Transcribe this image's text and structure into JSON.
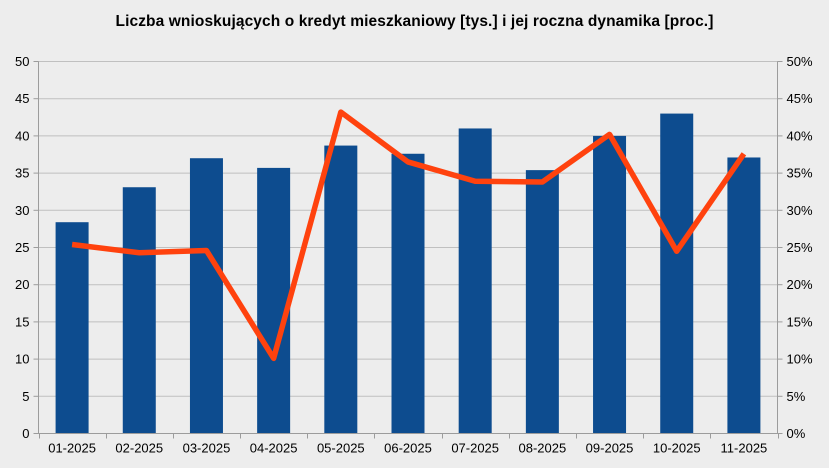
{
  "chart_data": {
    "type": "bar",
    "title": "Liczba wnioskujących o kredyt mieszkaniowy [tys.] i jej roczna dynamika [proc.]",
    "categories": [
      "01-2025",
      "02-2025",
      "03-2025",
      "04-2025",
      "05-2025",
      "06-2025",
      "07-2025",
      "08-2025",
      "09-2025",
      "10-2025",
      "11-2025"
    ],
    "series": [
      {
        "name": "Liczba wnioskujących o kredyt mieszkaniowy [tys.]",
        "kind": "bar",
        "axis": "left",
        "values": [
          28.4,
          33.1,
          37.0,
          35.7,
          38.7,
          37.6,
          41.0,
          35.4,
          40.0,
          43.0,
          37.1
        ]
      },
      {
        "name": "roczna dynamika [proc.]",
        "kind": "line",
        "axis": "right",
        "values": [
          25.4,
          24.3,
          24.6,
          10.1,
          43.2,
          36.5,
          33.9,
          33.8,
          40.2,
          24.5,
          37.6
        ]
      }
    ],
    "left_axis": {
      "min": 0,
      "max": 50,
      "step": 5,
      "tick_labels": [
        "0",
        "5",
        "10",
        "15",
        "20",
        "25",
        "30",
        "35",
        "40",
        "45",
        "50"
      ]
    },
    "right_axis": {
      "min": 0,
      "max": 50,
      "step": 5,
      "tick_labels": [
        "0%",
        "5%",
        "10%",
        "15%",
        "20%",
        "25%",
        "30%",
        "35%",
        "40%",
        "45%",
        "50%"
      ]
    },
    "grid": true,
    "legend": "none",
    "colors": {
      "bar": "#0d4c8f",
      "line": "#ff420e",
      "background": "#ededed",
      "gridline": "#c0c0c0",
      "axis": "#9c9c9c",
      "text": "#000000"
    }
  }
}
